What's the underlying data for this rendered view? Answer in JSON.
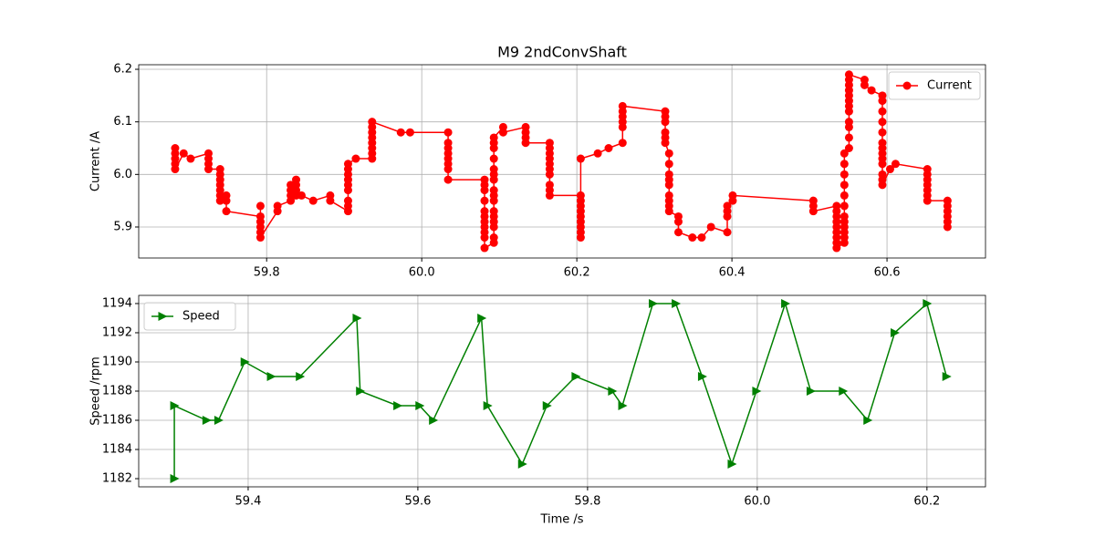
{
  "chart_data": [
    {
      "type": "line",
      "title": "M9 2ndConvShaft",
      "ylabel": "Current /A",
      "x": [
        59.682,
        59.682,
        59.682,
        59.682,
        59.682,
        59.693,
        59.702,
        59.725,
        59.725,
        59.725,
        59.725,
        59.74,
        59.74,
        59.74,
        59.74,
        59.74,
        59.74,
        59.74,
        59.748,
        59.748,
        59.748,
        59.792,
        59.792,
        59.792,
        59.792,
        59.792,
        59.792,
        59.814,
        59.814,
        59.831,
        59.831,
        59.831,
        59.831,
        59.838,
        59.838,
        59.838,
        59.838,
        59.845,
        59.86,
        59.882,
        59.882,
        59.905,
        59.905,
        59.905,
        59.905,
        59.905,
        59.905,
        59.905,
        59.905,
        59.905,
        59.915,
        59.936,
        59.936,
        59.936,
        59.936,
        59.936,
        59.936,
        59.936,
        59.936,
        59.973,
        59.985,
        60.034,
        60.034,
        60.034,
        60.034,
        60.034,
        60.034,
        60.034,
        60.034,
        60.081,
        60.081,
        60.081,
        60.081,
        60.081,
        60.081,
        60.081,
        60.081,
        60.081,
        60.081,
        60.081,
        60.093,
        60.093,
        60.093,
        60.093,
        60.093,
        60.093,
        60.093,
        60.093,
        60.093,
        60.093,
        60.093,
        60.093,
        60.093,
        60.093,
        60.093,
        60.093,
        60.105,
        60.105,
        60.134,
        60.134,
        60.134,
        60.134,
        60.165,
        60.165,
        60.165,
        60.165,
        60.165,
        60.165,
        60.165,
        60.165,
        60.165,
        60.165,
        60.205,
        60.205,
        60.205,
        60.205,
        60.205,
        60.205,
        60.205,
        60.205,
        60.205,
        60.205,
        60.227,
        60.241,
        60.259,
        60.259,
        60.259,
        60.259,
        60.259,
        60.259,
        60.314,
        60.314,
        60.314,
        60.314,
        60.314,
        60.314,
        60.319,
        60.319,
        60.319,
        60.319,
        60.319,
        60.319,
        60.319,
        60.319,
        60.319,
        60.331,
        60.331,
        60.331,
        60.349,
        60.361,
        60.373,
        60.394,
        60.394,
        60.394,
        60.394,
        60.401,
        60.401,
        60.505,
        60.505,
        60.505,
        60.535,
        60.535,
        60.535,
        60.535,
        60.535,
        60.535,
        60.535,
        60.535,
        60.535,
        60.545,
        60.545,
        60.545,
        60.545,
        60.545,
        60.545,
        60.545,
        60.545,
        60.545,
        60.545,
        60.545,
        60.545,
        60.551,
        60.551,
        60.551,
        60.551,
        60.551,
        60.551,
        60.551,
        60.551,
        60.551,
        60.551,
        60.551,
        60.551,
        60.571,
        60.571,
        60.58,
        60.594,
        60.594,
        60.594,
        60.594,
        60.594,
        60.594,
        60.594,
        60.594,
        60.594,
        60.594,
        60.594,
        60.594,
        60.594,
        60.604,
        60.611,
        60.652,
        60.652,
        60.652,
        60.652,
        60.652,
        60.652,
        60.652,
        60.678,
        60.678,
        60.678,
        60.678,
        60.678,
        60.678
      ],
      "series": [
        {
          "name": "Current",
          "color": "#ff0000",
          "marker": "circle",
          "values": [
            6.05,
            6.04,
            6.03,
            6.02,
            6.01,
            6.04,
            6.03,
            6.04,
            6.03,
            6.02,
            6.01,
            6.01,
            6.0,
            5.99,
            5.98,
            5.97,
            5.96,
            5.95,
            5.96,
            5.95,
            5.93,
            5.92,
            5.94,
            5.91,
            5.9,
            5.89,
            5.88,
            5.93,
            5.94,
            5.95,
            5.96,
            5.97,
            5.98,
            5.99,
            5.98,
            5.97,
            5.96,
            5.96,
            5.95,
            5.96,
            5.95,
            5.93,
            5.94,
            5.95,
            5.97,
            5.98,
            5.99,
            6.0,
            6.01,
            6.02,
            6.03,
            6.03,
            6.04,
            6.05,
            6.06,
            6.07,
            6.08,
            6.09,
            6.1,
            6.08,
            6.08,
            6.08,
            6.06,
            6.05,
            6.04,
            6.03,
            6.02,
            6.01,
            5.99,
            5.99,
            5.98,
            5.97,
            5.95,
            5.93,
            5.92,
            5.91,
            5.9,
            5.89,
            5.88,
            5.86,
            5.87,
            5.88,
            5.9,
            5.91,
            5.92,
            5.93,
            5.95,
            5.96,
            5.97,
            5.99,
            6.0,
            6.01,
            6.03,
            6.05,
            6.06,
            6.07,
            6.09,
            6.08,
            6.09,
            6.08,
            6.07,
            6.06,
            6.06,
            6.05,
            6.04,
            6.03,
            6.02,
            6.01,
            6.0,
            5.98,
            5.97,
            5.96,
            5.96,
            5.95,
            5.94,
            5.93,
            5.92,
            5.91,
            5.9,
            5.89,
            5.88,
            6.03,
            6.04,
            6.05,
            6.06,
            6.09,
            6.1,
            6.11,
            6.12,
            6.13,
            6.12,
            6.11,
            6.1,
            6.08,
            6.07,
            6.06,
            6.04,
            6.02,
            6.0,
            5.99,
            5.98,
            5.96,
            5.95,
            5.94,
            5.93,
            5.92,
            5.91,
            5.89,
            5.88,
            5.88,
            5.9,
            5.89,
            5.92,
            5.93,
            5.94,
            5.95,
            5.96,
            5.95,
            5.94,
            5.93,
            5.94,
            5.93,
            5.92,
            5.91,
            5.9,
            5.89,
            5.88,
            5.87,
            5.86,
            5.87,
            5.88,
            5.89,
            5.9,
            5.91,
            5.92,
            5.94,
            5.96,
            5.98,
            6.0,
            6.02,
            6.04,
            6.05,
            6.07,
            6.09,
            6.1,
            6.12,
            6.13,
            6.14,
            6.15,
            6.16,
            6.17,
            6.18,
            6.19,
            6.18,
            6.17,
            6.16,
            6.15,
            6.14,
            6.12,
            6.1,
            6.08,
            6.06,
            6.05,
            6.04,
            6.03,
            6.02,
            6.0,
            5.99,
            5.98,
            6.01,
            6.02,
            6.01,
            6.0,
            5.99,
            5.98,
            5.97,
            5.96,
            5.95,
            5.95,
            5.94,
            5.93,
            5.92,
            5.91,
            5.9
          ]
        }
      ],
      "xlim": [
        59.635,
        60.727
      ],
      "xticks": [
        59.8,
        {
          "value": 60,
          "label": "60.0"
        },
        60.2,
        60.4,
        60.6
      ],
      "ylim": [
        5.841,
        6.2087
      ],
      "yticks": [
        5.9,
        {
          "value": 6,
          "label": "6.0"
        },
        6.1,
        6.2
      ],
      "grid": true,
      "legend": "upper right"
    },
    {
      "type": "line",
      "xlabel": "Time /s",
      "ylabel": "Speed /rpm",
      "x": [
        59.313,
        59.313,
        59.351,
        59.365,
        59.396,
        59.427,
        59.461,
        59.528,
        59.532,
        59.576,
        59.602,
        59.618,
        59.675,
        59.682,
        59.723,
        59.752,
        59.786,
        59.829,
        59.841,
        59.877,
        59.904,
        59.935,
        59.97,
        59.999,
        60.033,
        60.063,
        60.101,
        60.13,
        60.162,
        60.2,
        60.223
      ],
      "series": [
        {
          "name": "Speed",
          "color": "#008000",
          "marker": "triangle-right",
          "values": [
            1182,
            1187,
            1186,
            1186,
            1190,
            1189,
            1189,
            1193,
            1188,
            1187,
            1187,
            1186,
            1193,
            1187,
            1183,
            1187,
            1189,
            1188,
            1187,
            1194,
            1194,
            1189,
            1183,
            1188,
            1194,
            1188,
            1188,
            1186,
            1192,
            1194,
            1189
          ]
        }
      ],
      "xlim": [
        59.271,
        60.269
      ],
      "xticks": [
        59.4,
        59.6,
        59.8,
        {
          "value": 60,
          "label": "60.0"
        },
        60.2
      ],
      "ylim": [
        1181.44,
        1194.56
      ],
      "yticks": [
        1182,
        1184,
        1186,
        1188,
        1190,
        1192,
        1194
      ],
      "grid": true,
      "legend": "upper left"
    }
  ]
}
